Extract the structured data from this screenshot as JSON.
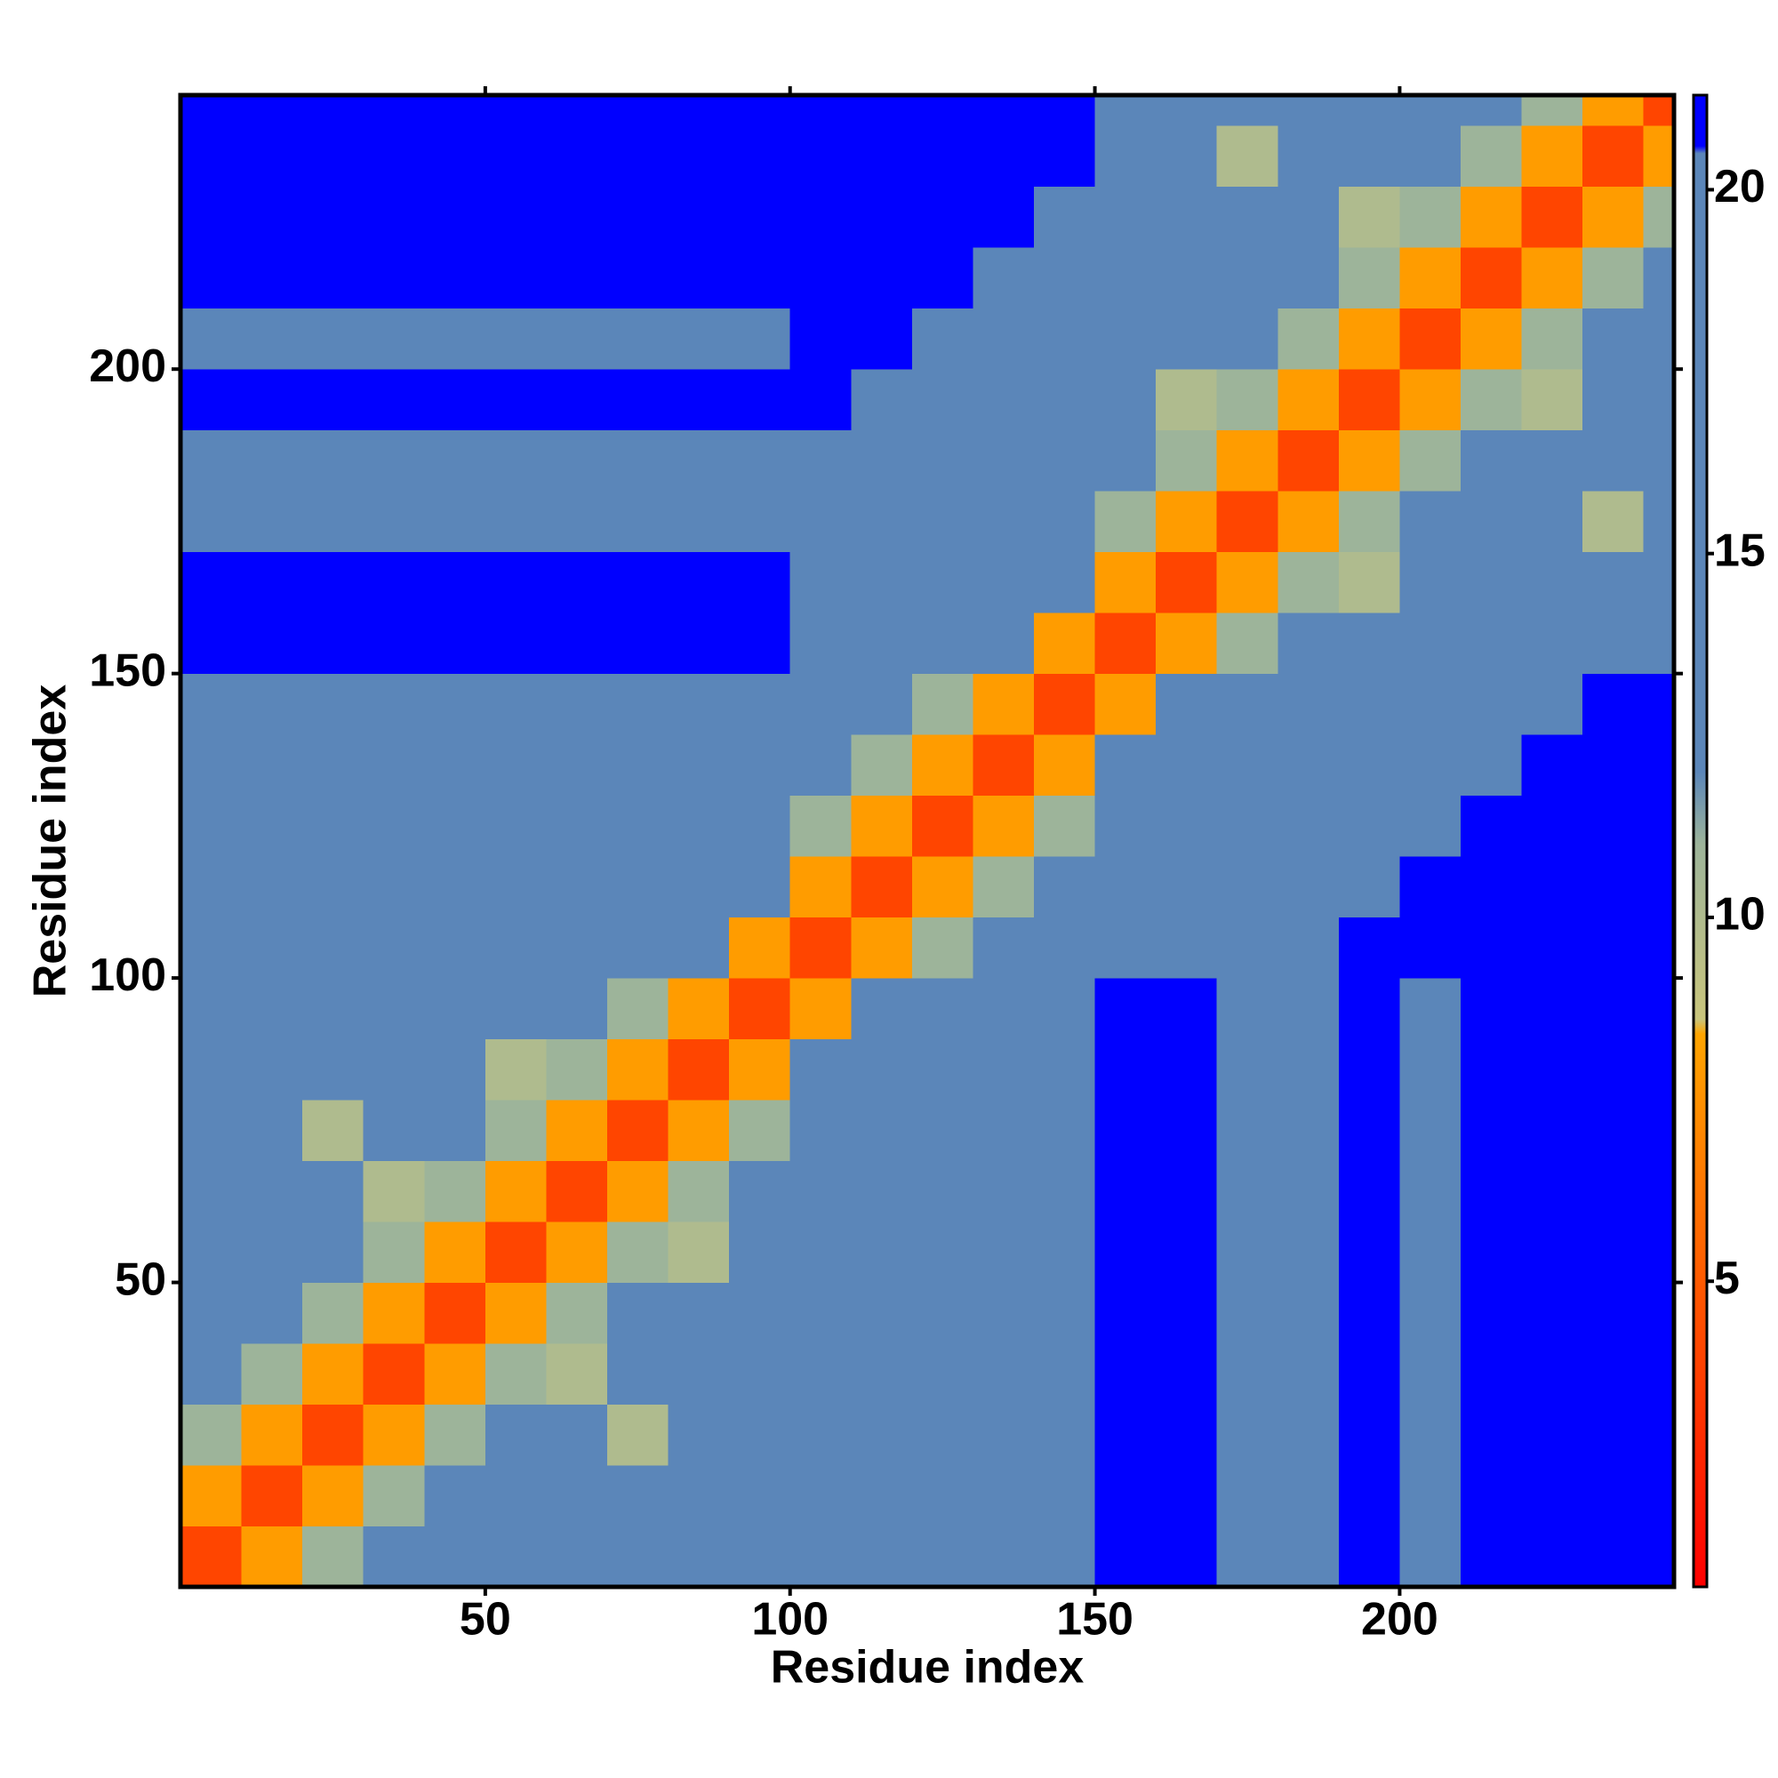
{
  "chart_data": {
    "type": "heatmap",
    "xlabel": "Residue index",
    "ylabel": "Residue index",
    "xbins": [
      0,
      10,
      20,
      30,
      40,
      50,
      60,
      70,
      80,
      90,
      100,
      110,
      120,
      130,
      140,
      150,
      160,
      170,
      180,
      190,
      200,
      210,
      220,
      230,
      240,
      245
    ],
    "ybins": [
      0,
      10,
      20,
      30,
      40,
      50,
      60,
      70,
      80,
      90,
      100,
      110,
      120,
      130,
      140,
      150,
      160,
      170,
      180,
      190,
      200,
      210,
      220,
      230,
      240,
      245
    ],
    "xlim": [
      0,
      245
    ],
    "ylim": [
      0,
      245
    ],
    "xticks": [
      50,
      100,
      150,
      200
    ],
    "yticks": [
      50,
      100,
      150,
      200
    ],
    "zlim": [
      0.8,
      21.3
    ],
    "zticks": [
      5,
      10,
      15,
      20
    ],
    "colorscale": [
      [
        0.8,
        "#ff0000"
      ],
      [
        5,
        "#ff5a00"
      ],
      [
        8.4,
        "#ffa500"
      ],
      [
        8.6,
        "#c9c57c"
      ],
      [
        11,
        "#9db49a"
      ],
      [
        12,
        "#5b86b9"
      ],
      [
        20.5,
        "#5b86b9"
      ],
      [
        20.6,
        "#0000ff"
      ],
      [
        21.3,
        "#0000ff"
      ]
    ],
    "z": [
      [
        4,
        8,
        11,
        14,
        14,
        14,
        14,
        14,
        14,
        14,
        19,
        19,
        19,
        19,
        19,
        22,
        22,
        20,
        20,
        22,
        20,
        22,
        22,
        22,
        22
      ],
      [
        8,
        4,
        8,
        11,
        14,
        14,
        14,
        14,
        14,
        14,
        19,
        19,
        19,
        19,
        19,
        22,
        22,
        20,
        20,
        22,
        20,
        22,
        22,
        22,
        22
      ],
      [
        11,
        8,
        4,
        8,
        11,
        14,
        14,
        10,
        14,
        14,
        19,
        19,
        19,
        19,
        19,
        22,
        22,
        20,
        20,
        22,
        20,
        22,
        22,
        22,
        22
      ],
      [
        14,
        11,
        8,
        4,
        8,
        11,
        10,
        14,
        14,
        14,
        19,
        19,
        19,
        19,
        19,
        22,
        22,
        20,
        20,
        22,
        20,
        22,
        22,
        22,
        22
      ],
      [
        14,
        14,
        11,
        8,
        4,
        8,
        11,
        14,
        14,
        14,
        19,
        19,
        19,
        19,
        19,
        22,
        22,
        20,
        20,
        22,
        20,
        22,
        22,
        22,
        22
      ],
      [
        14,
        14,
        14,
        11,
        8,
        4,
        8,
        11,
        10,
        14,
        19,
        19,
        19,
        19,
        19,
        22,
        22,
        20,
        20,
        22,
        20,
        22,
        22,
        22,
        22
      ],
      [
        14,
        14,
        14,
        10,
        11,
        8,
        4,
        8,
        11,
        14,
        16,
        19,
        19,
        19,
        19,
        22,
        22,
        20,
        20,
        22,
        20,
        22,
        22,
        22,
        22
      ],
      [
        14,
        14,
        10,
        14,
        14,
        11,
        8,
        4,
        8,
        11,
        16,
        16,
        19,
        19,
        19,
        22,
        22,
        20,
        20,
        22,
        20,
        22,
        22,
        22,
        22
      ],
      [
        14,
        14,
        14,
        14,
        14,
        10,
        11,
        8,
        4,
        8,
        12,
        16,
        16,
        19,
        19,
        22,
        22,
        20,
        20,
        22,
        20,
        22,
        22,
        22,
        22
      ],
      [
        14,
        14,
        14,
        14,
        14,
        14,
        14,
        11,
        8,
        4,
        8,
        12,
        16,
        16,
        19,
        22,
        22,
        20,
        20,
        22,
        20,
        22,
        22,
        22,
        22
      ],
      [
        19,
        19,
        19,
        19,
        19,
        19,
        16,
        16,
        12,
        8,
        4,
        8,
        11,
        14,
        14,
        19,
        19,
        19,
        19,
        21,
        21,
        21,
        21,
        21,
        21
      ],
      [
        19,
        19,
        19,
        19,
        19,
        19,
        19,
        16,
        16,
        12,
        8,
        4,
        8,
        11,
        14,
        16,
        19,
        19,
        19,
        19,
        21,
        21,
        21,
        21,
        21
      ],
      [
        19,
        19,
        19,
        19,
        19,
        19,
        19,
        19,
        16,
        16,
        11,
        8,
        4,
        8,
        11,
        16,
        16,
        19,
        19,
        19,
        19,
        21,
        21,
        21,
        21
      ],
      [
        19,
        19,
        19,
        19,
        19,
        19,
        19,
        19,
        19,
        16,
        14,
        11,
        8,
        4,
        8,
        12,
        16,
        16,
        19,
        19,
        19,
        19,
        21,
        21,
        21
      ],
      [
        19,
        19,
        19,
        19,
        19,
        19,
        19,
        19,
        19,
        19,
        14,
        14,
        11,
        8,
        4,
        8,
        12,
        16,
        16,
        19,
        19,
        19,
        19,
        21,
        21
      ],
      [
        22,
        22,
        22,
        22,
        22,
        22,
        22,
        22,
        22,
        22,
        19,
        16,
        16,
        12,
        8,
        4,
        8,
        11,
        14,
        14,
        14,
        14,
        14,
        14,
        14
      ],
      [
        22,
        22,
        22,
        22,
        22,
        22,
        22,
        22,
        22,
        22,
        19,
        19,
        16,
        16,
        12,
        8,
        4,
        8,
        11,
        10,
        14,
        14,
        14,
        14,
        14
      ],
      [
        20,
        20,
        20,
        20,
        20,
        20,
        20,
        20,
        20,
        20,
        19,
        19,
        19,
        16,
        16,
        11,
        8,
        4,
        8,
        11,
        14,
        14,
        14,
        10,
        14
      ],
      [
        20,
        20,
        20,
        20,
        20,
        20,
        20,
        20,
        20,
        20,
        19,
        19,
        19,
        19,
        16,
        14,
        11,
        8,
        4,
        8,
        11,
        14,
        14,
        14,
        14
      ],
      [
        22,
        22,
        22,
        22,
        22,
        22,
        22,
        22,
        22,
        22,
        21,
        19,
        19,
        19,
        19,
        14,
        10,
        11,
        8,
        4,
        8,
        11,
        10,
        14,
        14
      ],
      [
        20,
        20,
        20,
        20,
        20,
        20,
        20,
        20,
        20,
        20,
        21,
        21,
        19,
        19,
        19,
        14,
        14,
        14,
        11,
        8,
        4,
        8,
        11,
        14,
        14
      ],
      [
        22,
        22,
        22,
        22,
        22,
        22,
        22,
        22,
        22,
        22,
        21,
        21,
        21,
        19,
        19,
        14,
        14,
        14,
        14,
        11,
        8,
        4,
        8,
        11,
        14
      ],
      [
        22,
        22,
        22,
        22,
        22,
        22,
        22,
        22,
        22,
        22,
        21,
        21,
        21,
        21,
        19,
        14,
        14,
        14,
        14,
        10,
        11,
        8,
        4,
        8,
        11
      ],
      [
        22,
        22,
        22,
        22,
        22,
        22,
        22,
        22,
        22,
        22,
        21,
        21,
        21,
        21,
        21,
        14,
        14,
        10,
        14,
        14,
        14,
        11,
        8,
        4,
        8
      ],
      [
        22,
        22,
        22,
        22,
        22,
        22,
        22,
        22,
        22,
        22,
        21,
        21,
        21,
        21,
        21,
        14,
        14,
        14,
        14,
        14,
        14,
        14,
        11,
        8,
        4
      ]
    ]
  }
}
